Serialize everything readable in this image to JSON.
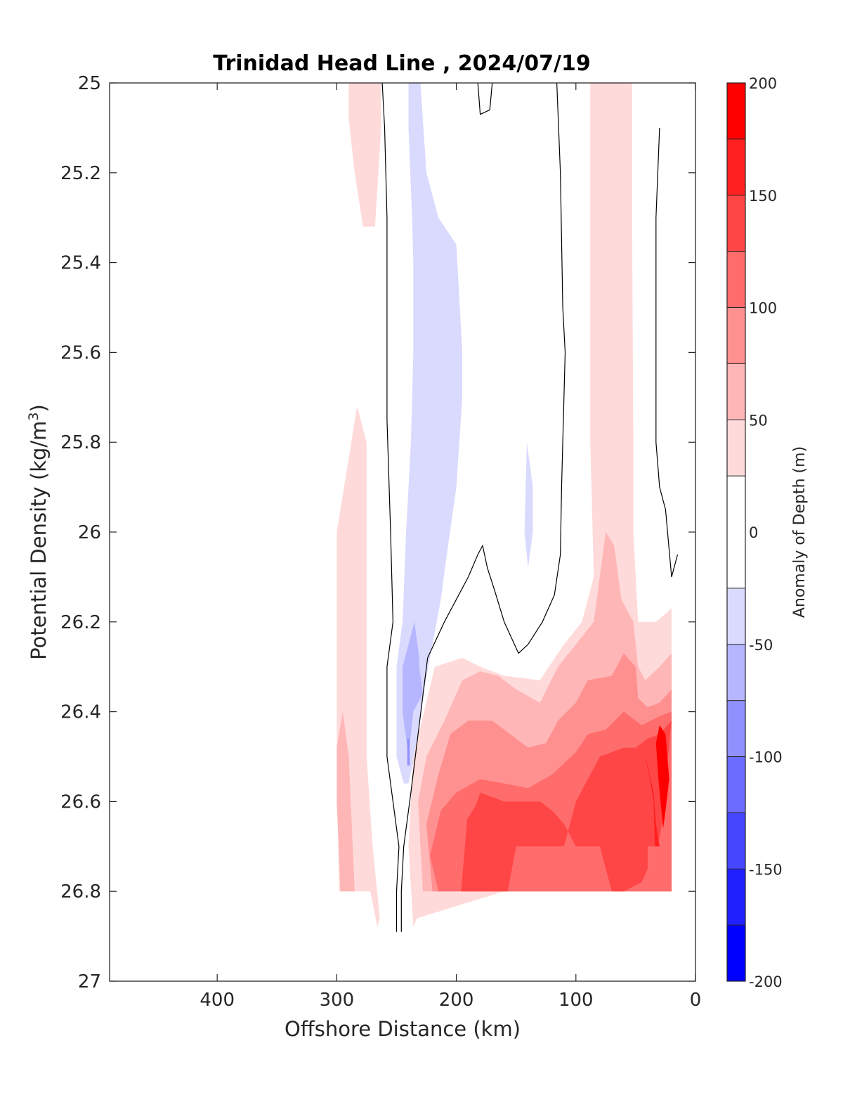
{
  "chart_data": {
    "type": "contour",
    "title": "Trinidad Head Line , 2024/07/19",
    "xlabel": "Offshore Distance (km)",
    "ylabel": "Potential Density (kg/m",
    "ylabel_superscript": "3",
    "ylabel_close": ")",
    "xlim": [
      490,
      0
    ],
    "ylim": [
      25,
      27
    ],
    "y_reversed": true,
    "x_ticks": [
      "400",
      "300",
      "200",
      "100",
      "0"
    ],
    "x_tick_values": [
      400,
      300,
      200,
      100,
      0
    ],
    "y_ticks": [
      "25",
      "25.2",
      "25.4",
      "25.6",
      "25.8",
      "26",
      "26.2",
      "26.4",
      "26.6",
      "26.8",
      "27"
    ],
    "y_tick_values": [
      25,
      25.2,
      25.4,
      25.6,
      25.8,
      26,
      26.2,
      26.4,
      26.6,
      26.8,
      27
    ],
    "colorbar": {
      "label": "Anomaly of Depth (m)",
      "range": [
        -200,
        200
      ],
      "levels": [
        -200,
        -175,
        -150,
        -125,
        -100,
        -75,
        -50,
        -25,
        25,
        50,
        75,
        100,
        125,
        150,
        175,
        200
      ],
      "tick_values": [
        200,
        150,
        100,
        50,
        0,
        -50,
        -100,
        -150,
        -200
      ],
      "tick_labels": [
        "200",
        "150",
        "100",
        "50",
        "0",
        "-50",
        "-100",
        "-150",
        "-200"
      ],
      "bands": [
        {
          "from": 175,
          "to": 200,
          "color": "#ff0000"
        },
        {
          "from": 150,
          "to": 175,
          "color": "#ff2020"
        },
        {
          "from": 125,
          "to": 150,
          "color": "#ff4646"
        },
        {
          "from": 100,
          "to": 125,
          "color": "#ff6c6c"
        },
        {
          "from": 75,
          "to": 100,
          "color": "#ff9090"
        },
        {
          "from": 50,
          "to": 75,
          "color": "#ffb6b6"
        },
        {
          "from": 25,
          "to": 50,
          "color": "#ffdada"
        },
        {
          "from": -25,
          "to": 25,
          "color": "#ffffff"
        },
        {
          "from": -50,
          "to": -25,
          "color": "#dadaff"
        },
        {
          "from": -75,
          "to": -50,
          "color": "#b6b6ff"
        },
        {
          "from": -100,
          "to": -75,
          "color": "#9090ff"
        },
        {
          "from": -125,
          "to": -100,
          "color": "#6c6cff"
        },
        {
          "from": -150,
          "to": -125,
          "color": "#4646ff"
        },
        {
          "from": -175,
          "to": -150,
          "color": "#2020ff"
        },
        {
          "from": -200,
          "to": -175,
          "color": "#0000ff"
        }
      ]
    },
    "regions": [
      {
        "name": "pink-top-offshore",
        "color": "#ffdada",
        "points": [
          [
            290,
            25
          ],
          [
            263,
            25
          ],
          [
            263,
            25.1
          ],
          [
            268,
            25.32
          ],
          [
            278,
            25.32
          ],
          [
            285,
            25.2
          ],
          [
            290,
            25.08
          ]
        ]
      },
      {
        "name": "pink-offshore-column",
        "color": "#ffdada",
        "points": [
          [
            300,
            26
          ],
          [
            283,
            25.72
          ],
          [
            275,
            25.8
          ],
          [
            275,
            26.3
          ],
          [
            275,
            26.5
          ],
          [
            270,
            26.7
          ],
          [
            264,
            26.86
          ],
          [
            266,
            26.88
          ],
          [
            272,
            26.8
          ],
          [
            298,
            26.8
          ],
          [
            300,
            26.5
          ],
          [
            300,
            26.2
          ]
        ]
      },
      {
        "name": "pink2-offshore",
        "color": "#ffb6b6",
        "points": [
          [
            300,
            26.48
          ],
          [
            295,
            26.4
          ],
          [
            290,
            26.5
          ],
          [
            285,
            26.8
          ],
          [
            297,
            26.8
          ],
          [
            300,
            26.6
          ]
        ]
      },
      {
        "name": "blue-main-column",
        "color": "#dadaff",
        "points": [
          [
            240,
            25
          ],
          [
            230,
            25
          ],
          [
            225,
            25.2
          ],
          [
            215,
            25.3
          ],
          [
            200,
            25.36
          ],
          [
            195,
            25.6
          ],
          [
            195,
            25.7
          ],
          [
            200,
            25.9
          ],
          [
            208,
            26.05
          ],
          [
            213,
            26.15
          ],
          [
            222,
            26.28
          ],
          [
            229,
            26.38
          ],
          [
            235,
            26.5
          ],
          [
            240,
            26.56
          ],
          [
            244,
            26.56
          ],
          [
            250,
            26.5
          ],
          [
            250,
            26.3
          ],
          [
            245,
            26.2
          ],
          [
            242,
            26
          ],
          [
            238,
            25.8
          ],
          [
            236,
            25.6
          ],
          [
            236,
            25.4
          ],
          [
            237,
            25.3
          ],
          [
            240,
            25.1
          ]
        ]
      },
      {
        "name": "blue-small-column",
        "color": "#dadaff",
        "points": [
          [
            143,
            26
          ],
          [
            141,
            25.8
          ],
          [
            136,
            25.9
          ],
          [
            136,
            26
          ],
          [
            140,
            26.08
          ]
        ]
      },
      {
        "name": "blue2-inner",
        "color": "#b6b6ff",
        "points": [
          [
            235,
            26.2
          ],
          [
            231,
            26.28
          ],
          [
            231,
            26.3
          ],
          [
            228,
            26.36
          ],
          [
            236,
            26.4
          ],
          [
            240,
            26.5
          ],
          [
            245,
            26.4
          ],
          [
            245,
            26.3
          ],
          [
            240,
            26.25
          ]
        ]
      },
      {
        "name": "blue3-sliver",
        "color": "#9090ff",
        "points": [
          [
            241,
            26.46
          ],
          [
            239,
            26.46
          ],
          [
            239,
            26.52
          ],
          [
            241,
            26.52
          ]
        ]
      },
      {
        "name": "pink-top-inshore",
        "color": "#ffdada",
        "points": [
          [
            88,
            25
          ],
          [
            53,
            25
          ],
          [
            53,
            25.3
          ],
          [
            52,
            25.8
          ],
          [
            52,
            26
          ],
          [
            50,
            26.1
          ],
          [
            48,
            26.2
          ],
          [
            42,
            26.2
          ],
          [
            33,
            26.2
          ],
          [
            20,
            26.17
          ],
          [
            20,
            26.8
          ],
          [
            160,
            26.8
          ],
          [
            233,
            26.86
          ],
          [
            236,
            26.88
          ],
          [
            240,
            26.7
          ],
          [
            236,
            26.5
          ],
          [
            218,
            26.3
          ],
          [
            195,
            26.28
          ],
          [
            180,
            26.3
          ],
          [
            160,
            26.32
          ],
          [
            130,
            26.33
          ],
          [
            110,
            26.25
          ],
          [
            95,
            26.2
          ],
          [
            85,
            26.1
          ],
          [
            86,
            26
          ],
          [
            88,
            25.8
          ],
          [
            88,
            25.3
          ]
        ]
      },
      {
        "name": "pink2-inshore",
        "color": "#ffb6b6",
        "points": [
          [
            75,
            26
          ],
          [
            68,
            26.03
          ],
          [
            62,
            26.15
          ],
          [
            52,
            26.2
          ],
          [
            48,
            26.3
          ],
          [
            42,
            26.33
          ],
          [
            30,
            26.3
          ],
          [
            20,
            26.27
          ],
          [
            20,
            26.8
          ],
          [
            228,
            26.8
          ],
          [
            232,
            26.6
          ],
          [
            225,
            26.5
          ],
          [
            210,
            26.42
          ],
          [
            195,
            26.33
          ],
          [
            180,
            26.31
          ],
          [
            165,
            26.32
          ],
          [
            150,
            26.35
          ],
          [
            130,
            26.38
          ],
          [
            115,
            26.3
          ],
          [
            100,
            26.25
          ],
          [
            85,
            26.2
          ],
          [
            80,
            26.1
          ]
        ]
      },
      {
        "name": "pink3-inshore",
        "color": "#ff9090",
        "points": [
          [
            60,
            26.27
          ],
          [
            50,
            26.3
          ],
          [
            48,
            26.37
          ],
          [
            40,
            26.39
          ],
          [
            30,
            26.38
          ],
          [
            20,
            26.35
          ],
          [
            20,
            26.8
          ],
          [
            220,
            26.8
          ],
          [
            225,
            26.65
          ],
          [
            215,
            26.54
          ],
          [
            205,
            26.45
          ],
          [
            190,
            26.42
          ],
          [
            170,
            26.42
          ],
          [
            155,
            26.45
          ],
          [
            140,
            26.48
          ],
          [
            125,
            26.47
          ],
          [
            115,
            26.42
          ],
          [
            100,
            26.38
          ],
          [
            90,
            26.33
          ],
          [
            70,
            26.32
          ]
        ]
      },
      {
        "name": "pink4-inshore",
        "color": "#ff6c6c",
        "points": [
          [
            60,
            26.4
          ],
          [
            45,
            26.43
          ],
          [
            30,
            26.41
          ],
          [
            20,
            26.4
          ],
          [
            20,
            26.8
          ],
          [
            195,
            26.8
          ],
          [
            215,
            26.8
          ],
          [
            222,
            26.72
          ],
          [
            213,
            26.62
          ],
          [
            200,
            26.58
          ],
          [
            180,
            26.55
          ],
          [
            160,
            26.56
          ],
          [
            140,
            26.57
          ],
          [
            120,
            26.54
          ],
          [
            100,
            26.49
          ],
          [
            90,
            26.45
          ],
          [
            75,
            26.44
          ]
        ]
      },
      {
        "name": "pink5-inshore",
        "color": "#ff4646",
        "points": [
          [
            60,
            26.48
          ],
          [
            50,
            26.48
          ],
          [
            40,
            26.46
          ],
          [
            30,
            26.45
          ],
          [
            20,
            26.42
          ],
          [
            23,
            26.5
          ],
          [
            25,
            26.6
          ],
          [
            30,
            26.68
          ],
          [
            32,
            26.7
          ],
          [
            40,
            26.7
          ],
          [
            40,
            26.75
          ],
          [
            45,
            26.78
          ],
          [
            60,
            26.8
          ],
          [
            70,
            26.8
          ],
          [
            80,
            26.7
          ],
          [
            100,
            26.7
          ],
          [
            110,
            26.65
          ],
          [
            120,
            26.62
          ],
          [
            130,
            26.6
          ],
          [
            140,
            26.6
          ],
          [
            160,
            26.6
          ],
          [
            170,
            26.59
          ],
          [
            180,
            26.58
          ],
          [
            184,
            26.61
          ],
          [
            191,
            26.64
          ],
          [
            196,
            26.8
          ],
          [
            183,
            26.8
          ],
          [
            171,
            26.8
          ],
          [
            157,
            26.8
          ],
          [
            150,
            26.7
          ],
          [
            110,
            26.7
          ],
          [
            100,
            26.6
          ],
          [
            90,
            26.55
          ],
          [
            80,
            26.5
          ],
          [
            70,
            26.49
          ]
        ]
      },
      {
        "name": "pink6-inshore",
        "color": "#ff2020",
        "points": [
          [
            40,
            26.52
          ],
          [
            35,
            26.58
          ],
          [
            33,
            26.65
          ],
          [
            30,
            26.7
          ],
          [
            34,
            26.7
          ],
          [
            35,
            26.6
          ],
          [
            38,
            26.55
          ],
          [
            42,
            26.5
          ]
        ]
      },
      {
        "name": "red-core",
        "color": "#ff0000",
        "points": [
          [
            30,
            26.43
          ],
          [
            25,
            26.45
          ],
          [
            22,
            26.55
          ],
          [
            25,
            26.62
          ],
          [
            27,
            26.66
          ],
          [
            31,
            26.55
          ],
          [
            33,
            26.47
          ]
        ]
      }
    ],
    "contour_lines": [
      {
        "name": "zero-contour-offshore-a",
        "level": 0,
        "points": [
          [
            250,
            26.89
          ],
          [
            250,
            26.8
          ],
          [
            248,
            26.7
          ],
          [
            253,
            26.6
          ],
          [
            258,
            26.5
          ],
          [
            258,
            26.3
          ],
          [
            253,
            26.2
          ],
          [
            255,
            26
          ],
          [
            258,
            25.75
          ],
          [
            258,
            25.5
          ],
          [
            258,
            25.3
          ],
          [
            260,
            25.1
          ],
          [
            262,
            25
          ]
        ]
      },
      {
        "name": "zero-contour-offshore-b",
        "level": 0,
        "points": [
          [
            246,
            26.89
          ],
          [
            246,
            26.8
          ],
          [
            244,
            26.7
          ],
          [
            238,
            26.58
          ],
          [
            232,
            26.45
          ],
          [
            224,
            26.28
          ],
          [
            210,
            26.2
          ],
          [
            200,
            26.15
          ],
          [
            190,
            26.1
          ],
          [
            182,
            26.05
          ],
          [
            178,
            26.03
          ],
          [
            174,
            26.08
          ],
          [
            168,
            26.13
          ],
          [
            160,
            26.2
          ],
          [
            148,
            26.27
          ],
          [
            140,
            26.25
          ],
          [
            128,
            26.2
          ],
          [
            118,
            26.14
          ],
          [
            113,
            26.05
          ],
          [
            112,
            25.9
          ],
          [
            111,
            25.8
          ],
          [
            109,
            25.6
          ],
          [
            111,
            25.5
          ],
          [
            113,
            25.2
          ],
          [
            116,
            25
          ]
        ]
      },
      {
        "name": "zero-contour-top-loop",
        "level": 0,
        "points": [
          [
            182,
            25
          ],
          [
            180,
            25.07
          ],
          [
            172,
            25.06
          ],
          [
            170,
            25
          ]
        ]
      },
      {
        "name": "zero-contour-inshore",
        "level": 0,
        "points": [
          [
            30,
            25.1
          ],
          [
            33,
            25.3
          ],
          [
            33,
            25.5
          ],
          [
            33,
            25.8
          ],
          [
            30,
            25.9
          ],
          [
            25,
            25.95
          ],
          [
            20,
            26.1
          ],
          [
            15,
            26.05
          ]
        ]
      }
    ]
  }
}
